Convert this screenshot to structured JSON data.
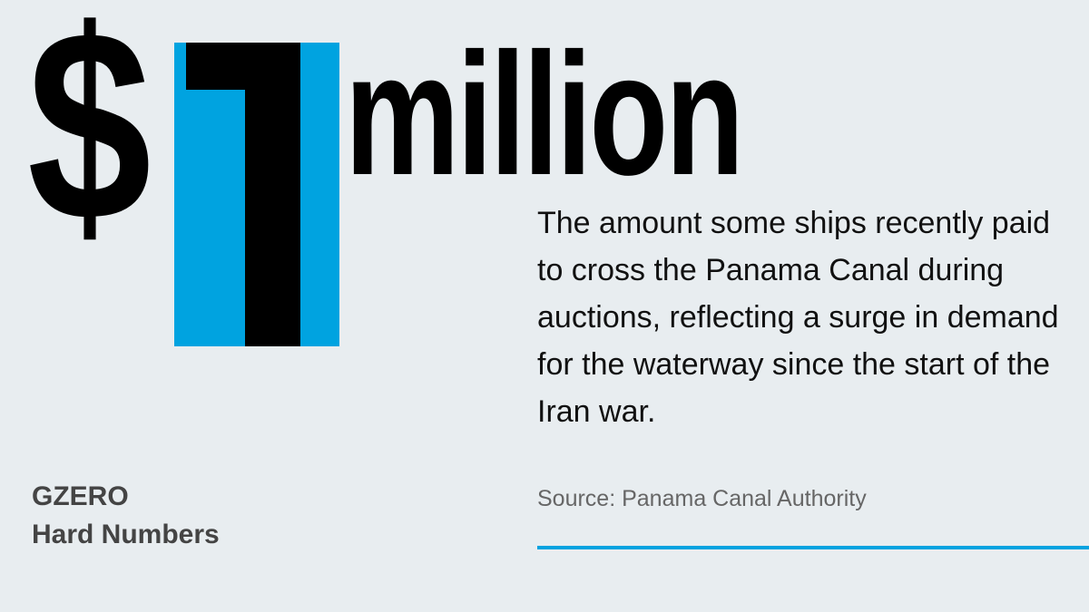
{
  "headline": {
    "currency": "$",
    "number": "1",
    "unit": "million"
  },
  "description": "The amount some ships recently paid to cross the Panama Canal during auctions, reflecting a surge in demand for the waterway since the start of the Iran war.",
  "source": "Source: Panama Canal Authority",
  "brand": {
    "name": "GZERO",
    "series": "Hard Numbers"
  },
  "colors": {
    "accent": "#00a3e0",
    "background": "#e8edf0",
    "text": "#000000"
  }
}
